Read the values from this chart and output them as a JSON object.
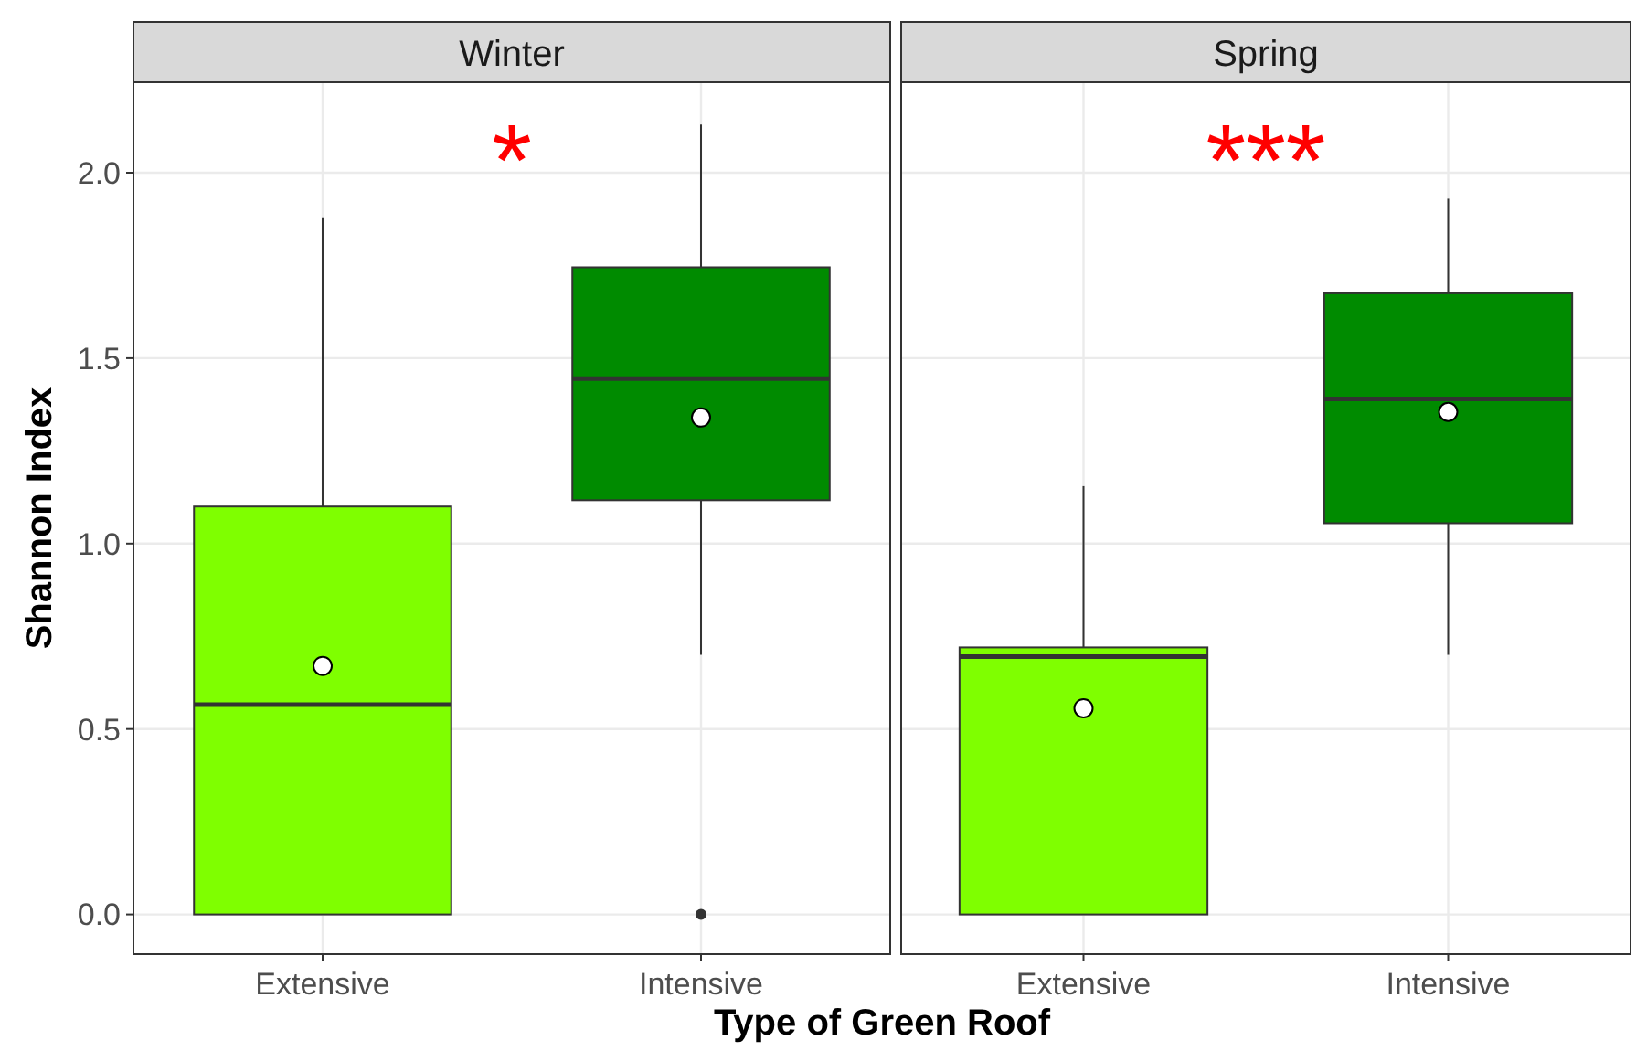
{
  "chart_data": [
    {
      "type": "box",
      "title": "Winter",
      "xlabel": "Type of Green Roof",
      "ylabel": "Shannon Index",
      "categories": [
        "Extensive",
        "Intensive"
      ],
      "ylim": [
        -0.107,
        2.244
      ],
      "yticks": [
        {
          "value": 0,
          "label": "0.0"
        },
        {
          "value": 0.5,
          "label": "0.5"
        },
        {
          "value": 1,
          "label": "1.0"
        },
        {
          "value": 1.5,
          "label": "1.5"
        },
        {
          "value": 2,
          "label": "2.0"
        }
      ],
      "grid": true,
      "annotations": [
        "*"
      ],
      "series": [
        {
          "colors": [
            "#7fff00",
            "#008b00"
          ],
          "boxes": [
            {
              "low": 0,
              "q1": 0,
              "median": 0.566,
              "q3": 1.1,
              "high": 1.88,
              "mean": 0.67
            },
            {
              "low": 0.7,
              "q1": 1.117,
              "median": 1.445,
              "q3": 1.745,
              "high": 2.13,
              "mean": 1.34,
              "outliers": [
                0
              ]
            }
          ]
        }
      ]
    },
    {
      "type": "box",
      "title": "Spring",
      "categories": [
        "Extensive",
        "Intensive"
      ],
      "ylim": [
        -0.107,
        2.244
      ],
      "yticks": [
        0,
        0.5,
        1,
        1.5,
        2
      ],
      "tick_labels": "x",
      "grid": true,
      "annotations": [
        "***"
      ],
      "series": [
        {
          "colors": [
            "#7fff00",
            "#008b00"
          ],
          "boxes": [
            {
              "low": 0,
              "q1": 0,
              "median": 0.695,
              "q3": 0.72,
              "high": 1.155,
              "mean": 0.556
            },
            {
              "low": 0.7,
              "q1": 1.055,
              "median": 1.39,
              "q3": 1.675,
              "high": 1.93,
              "mean": 1.355
            }
          ]
        }
      ]
    }
  ]
}
